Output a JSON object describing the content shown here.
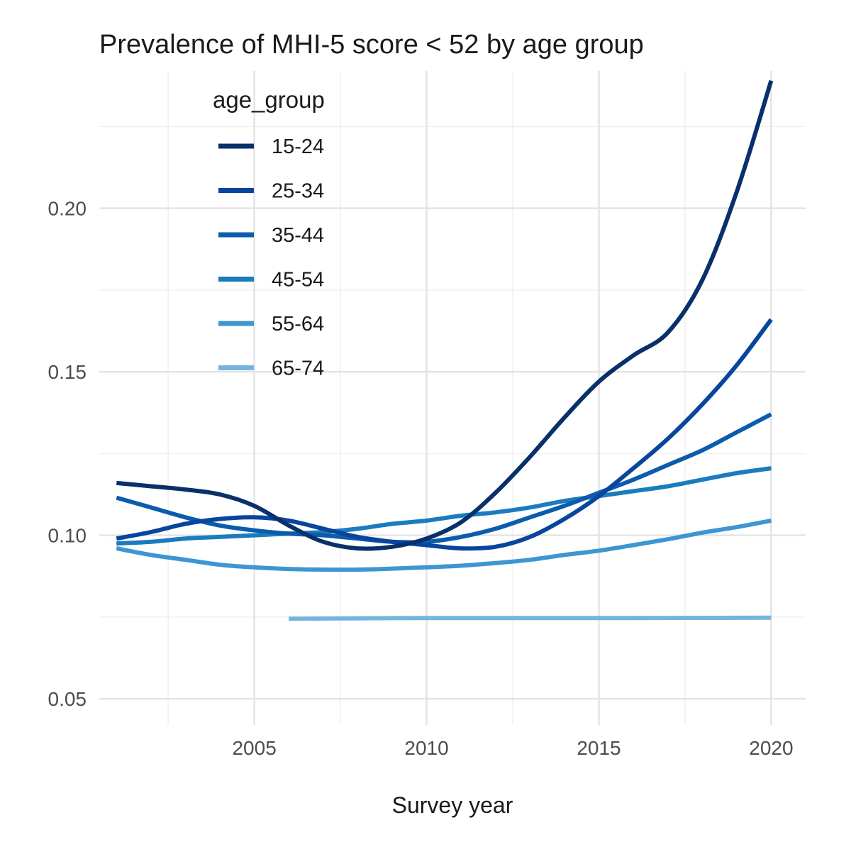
{
  "chart_data": {
    "type": "line",
    "title": "Prevalence of MHI-5 score < 52 by age group",
    "xlabel": "Survey year",
    "ylabel": "",
    "xlim": [
      2000.5,
      2021
    ],
    "ylim": [
      0.042,
      0.242
    ],
    "x_ticks": [
      2005,
      2010,
      2015,
      2020
    ],
    "x_tick_labels": [
      "2005",
      "2010",
      "2015",
      "2020"
    ],
    "x_minor": [
      2002.5,
      2007.5,
      2012.5,
      2017.5
    ],
    "y_ticks": [
      0.05,
      0.1,
      0.15,
      0.2
    ],
    "y_tick_labels": [
      "0.05",
      "0.10",
      "0.15",
      "0.20"
    ],
    "y_minor": [
      0.075,
      0.125,
      0.175,
      0.225
    ],
    "grid": true,
    "legend": {
      "title": "age_group",
      "position": "top-left"
    },
    "series": [
      {
        "name": "15-24",
        "color": "#08306b",
        "points": [
          [
            2001,
            0.116
          ],
          [
            2002,
            0.115
          ],
          [
            2003,
            0.114
          ],
          [
            2004,
            0.1125
          ],
          [
            2005,
            0.109
          ],
          [
            2006,
            0.103
          ],
          [
            2007,
            0.098
          ],
          [
            2008,
            0.096
          ],
          [
            2009,
            0.0965
          ],
          [
            2010,
            0.099
          ],
          [
            2011,
            0.104
          ],
          [
            2012,
            0.113
          ],
          [
            2013,
            0.124
          ],
          [
            2014,
            0.136
          ],
          [
            2015,
            0.147
          ],
          [
            2016,
            0.155
          ],
          [
            2017,
            0.162
          ],
          [
            2018,
            0.178
          ],
          [
            2019,
            0.205
          ],
          [
            2020,
            0.239
          ]
        ]
      },
      {
        "name": "25-34",
        "color": "#08459c",
        "points": [
          [
            2001,
            0.099
          ],
          [
            2002,
            0.101
          ],
          [
            2003,
            0.1035
          ],
          [
            2004,
            0.105
          ],
          [
            2005,
            0.1055
          ],
          [
            2006,
            0.1045
          ],
          [
            2007,
            0.102
          ],
          [
            2008,
            0.0995
          ],
          [
            2009,
            0.098
          ],
          [
            2010,
            0.097
          ],
          [
            2011,
            0.096
          ],
          [
            2012,
            0.0965
          ],
          [
            2013,
            0.0995
          ],
          [
            2014,
            0.105
          ],
          [
            2015,
            0.112
          ],
          [
            2016,
            0.1205
          ],
          [
            2017,
            0.1295
          ],
          [
            2018,
            0.14
          ],
          [
            2019,
            0.152
          ],
          [
            2020,
            0.166
          ]
        ]
      },
      {
        "name": "35-44",
        "color": "#0b5cad",
        "points": [
          [
            2001,
            0.1115
          ],
          [
            2002,
            0.1085
          ],
          [
            2003,
            0.1055
          ],
          [
            2004,
            0.103
          ],
          [
            2005,
            0.1015
          ],
          [
            2006,
            0.1005
          ],
          [
            2007,
            0.1
          ],
          [
            2008,
            0.099
          ],
          [
            2009,
            0.098
          ],
          [
            2010,
            0.098
          ],
          [
            2011,
            0.0995
          ],
          [
            2012,
            0.102
          ],
          [
            2013,
            0.1055
          ],
          [
            2014,
            0.109
          ],
          [
            2015,
            0.113
          ],
          [
            2016,
            0.117
          ],
          [
            2017,
            0.1215
          ],
          [
            2018,
            0.126
          ],
          [
            2019,
            0.1315
          ],
          [
            2020,
            0.137
          ]
        ]
      },
      {
        "name": "45-54",
        "color": "#1b7bbf",
        "points": [
          [
            2001,
            0.0975
          ],
          [
            2002,
            0.098
          ],
          [
            2003,
            0.099
          ],
          [
            2004,
            0.0995
          ],
          [
            2005,
            0.1
          ],
          [
            2006,
            0.1005
          ],
          [
            2007,
            0.101
          ],
          [
            2008,
            0.102
          ],
          [
            2009,
            0.1035
          ],
          [
            2010,
            0.1045
          ],
          [
            2011,
            0.106
          ],
          [
            2012,
            0.107
          ],
          [
            2013,
            0.1085
          ],
          [
            2014,
            0.1105
          ],
          [
            2015,
            0.112
          ],
          [
            2016,
            0.1135
          ],
          [
            2017,
            0.115
          ],
          [
            2018,
            0.117
          ],
          [
            2019,
            0.119
          ],
          [
            2020,
            0.1205
          ]
        ]
      },
      {
        "name": "55-64",
        "color": "#3d96d2",
        "points": [
          [
            2001,
            0.096
          ],
          [
            2002,
            0.094
          ],
          [
            2003,
            0.0925
          ],
          [
            2004,
            0.091
          ],
          [
            2005,
            0.0902
          ],
          [
            2006,
            0.0897
          ],
          [
            2007,
            0.0895
          ],
          [
            2008,
            0.0895
          ],
          [
            2009,
            0.0898
          ],
          [
            2010,
            0.0902
          ],
          [
            2011,
            0.0907
          ],
          [
            2012,
            0.0915
          ],
          [
            2013,
            0.0925
          ],
          [
            2014,
            0.094
          ],
          [
            2015,
            0.0953
          ],
          [
            2016,
            0.097
          ],
          [
            2017,
            0.0988
          ],
          [
            2018,
            0.1008
          ],
          [
            2019,
            0.1025
          ],
          [
            2020,
            0.1045
          ]
        ]
      },
      {
        "name": "65-74",
        "color": "#74b5dd",
        "points": [
          [
            2006,
            0.0745
          ],
          [
            2010,
            0.0747
          ],
          [
            2015,
            0.0747
          ],
          [
            2020,
            0.0748
          ]
        ]
      }
    ]
  }
}
